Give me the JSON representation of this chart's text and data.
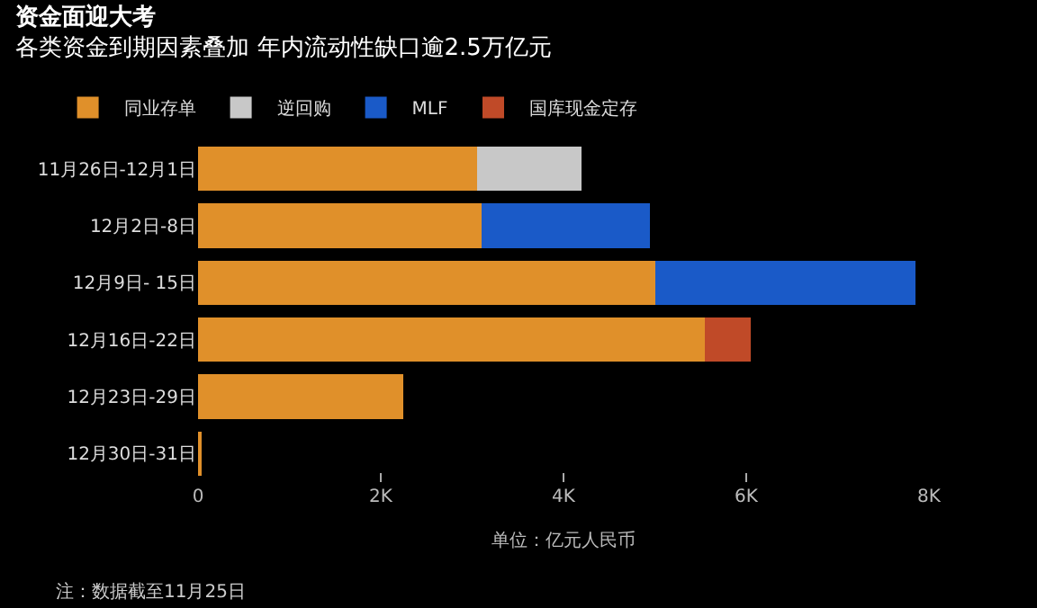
{
  "chart_data": {
    "type": "bar",
    "orientation": "horizontal",
    "stacked": true,
    "title": "资金面迎大考",
    "subtitle": "各类资金到期因素叠加 年内流动性缺口逾2.5万亿元",
    "categories": [
      "11月26日-12月1日",
      "12月2日-8日",
      "12月9日- 15日",
      "12月16日-22日",
      "12月23日-29日",
      "12月30日-31日"
    ],
    "series": [
      {
        "name": "同业存单",
        "color": "#e0902a",
        "values": [
          3050,
          3100,
          5000,
          5550,
          2250,
          20
        ]
      },
      {
        "name": "逆回购",
        "color": "#c8c8c8",
        "values": [
          1150,
          null,
          null,
          null,
          null,
          null
        ]
      },
      {
        "name": "MLF",
        "color": "#1a5ac8",
        "values": [
          null,
          1850,
          2850,
          null,
          null,
          null
        ]
      },
      {
        "name": "国库现金定存",
        "color": "#c04a28",
        "values": [
          null,
          null,
          null,
          500,
          null,
          null
        ]
      }
    ],
    "xlim": [
      0,
      8000
    ],
    "xticks": [
      0,
      {
        "value": 2000,
        "label": "2K"
      },
      {
        "value": 4000,
        "label": "4K"
      },
      {
        "value": 6000,
        "label": "6K"
      },
      {
        "value": 8000,
        "label": "8K"
      }
    ],
    "xlabel": "单位：亿元人民币",
    "grid": false,
    "legend": "top left",
    "annotations": [
      "注：数据截至11月25日"
    ]
  }
}
